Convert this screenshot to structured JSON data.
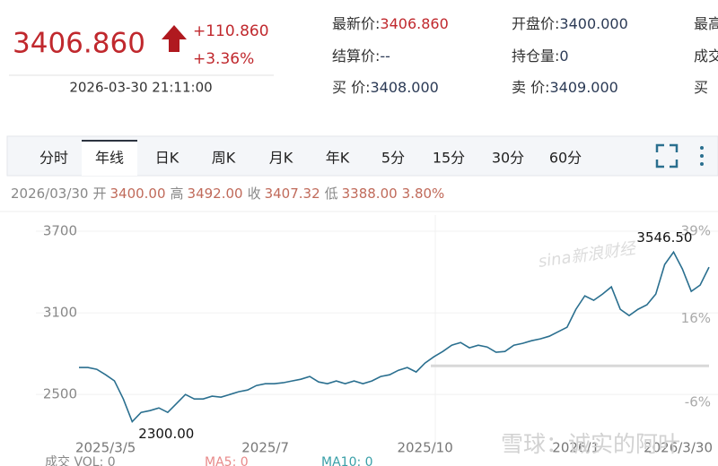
{
  "header": {
    "price": "3406.860",
    "change": "+110.860",
    "change_pct": "+3.36%",
    "time": "2026-03-30 21:11:00",
    "fields": [
      {
        "label": "最新价:",
        "value": "3406.860"
      },
      {
        "label": "结算价:",
        "value": "--"
      },
      {
        "label": "买  价:",
        "value": "3408.000"
      },
      {
        "label": "开盘价:",
        "value": "3400.000"
      },
      {
        "label": "持仓量:",
        "value": "0"
      },
      {
        "label": "卖  价:",
        "value": "3409.000"
      },
      {
        "label": "最高"
      },
      {
        "label": "成交"
      },
      {
        "label": "买"
      }
    ]
  },
  "tabs": [
    "分时",
    "年线",
    "日K",
    "周K",
    "月K",
    "年K",
    "5分",
    "15分",
    "30分",
    "60分"
  ],
  "active_tab": 1,
  "quote_line": {
    "date": "2026/03/30",
    "items": [
      {
        "label": "开",
        "value": "3400.00"
      },
      {
        "label": "高",
        "value": "3492.00"
      },
      {
        "label": "收",
        "value": "3407.32"
      },
      {
        "label": "低",
        "value": "3388.00"
      }
    ],
    "pct": "3.80%"
  },
  "chart_data": {
    "type": "line",
    "color": "#2a6f8f",
    "categories": [
      null,
      null,
      null,
      "2025/3/5",
      null,
      null,
      null,
      null,
      null,
      null,
      null,
      null,
      null,
      null,
      null,
      null,
      null,
      null,
      null,
      null,
      null,
      "2025/7",
      null,
      null,
      null,
      null,
      null,
      null,
      null,
      null,
      null,
      null,
      null,
      null,
      null,
      null,
      null,
      null,
      null,
      "2025/10",
      null,
      null,
      null,
      null,
      null,
      null,
      null,
      null,
      null,
      null,
      null,
      null,
      null,
      null,
      null,
      null,
      "2026/1",
      null,
      null,
      null,
      null,
      null,
      null,
      null,
      null,
      null,
      null,
      null,
      null,
      null,
      null,
      "2026/3/30"
    ],
    "values": [
      2698,
      2698,
      2685,
      2645,
      2600,
      2467,
      2300,
      2368,
      2381,
      2401,
      2368,
      2434,
      2500,
      2467,
      2467,
      2487,
      2480,
      2500,
      2520,
      2533,
      2566,
      2579,
      2579,
      2586,
      2599,
      2612,
      2632,
      2592,
      2579,
      2599,
      2579,
      2599,
      2579,
      2599,
      2632,
      2645,
      2678,
      2698,
      2665,
      2731,
      2777,
      2816,
      2862,
      2882,
      2843,
      2862,
      2849,
      2810,
      2816,
      2862,
      2876,
      2895,
      2909,
      2928,
      2961,
      2994,
      3126,
      3225,
      3192,
      3238,
      3291,
      3126,
      3080,
      3126,
      3159,
      3238,
      3456,
      3546.5,
      3423,
      3258,
      3304,
      3436
    ],
    "ylim": [
      2040,
      3766
    ],
    "yticks": [
      2500,
      3100,
      3700
    ],
    "y2lim": [
      -20.4,
      41.4
    ],
    "y2ticks": [
      {
        "value": -6,
        "label": "-6%"
      },
      {
        "value": 16,
        "label": "16%"
      },
      {
        "value": 39,
        "label": "39%"
      }
    ],
    "grid": true,
    "reference_line": 2710,
    "annotations": [
      {
        "text": "3546.50"
      },
      {
        "text": "2300.00"
      }
    ]
  },
  "watermarks": [
    "sina新浪财经",
    "雪球：诚实的阿叶"
  ],
  "footer": [
    "成交  VOL: 0",
    "MA5: 0",
    "MA10: 0"
  ]
}
